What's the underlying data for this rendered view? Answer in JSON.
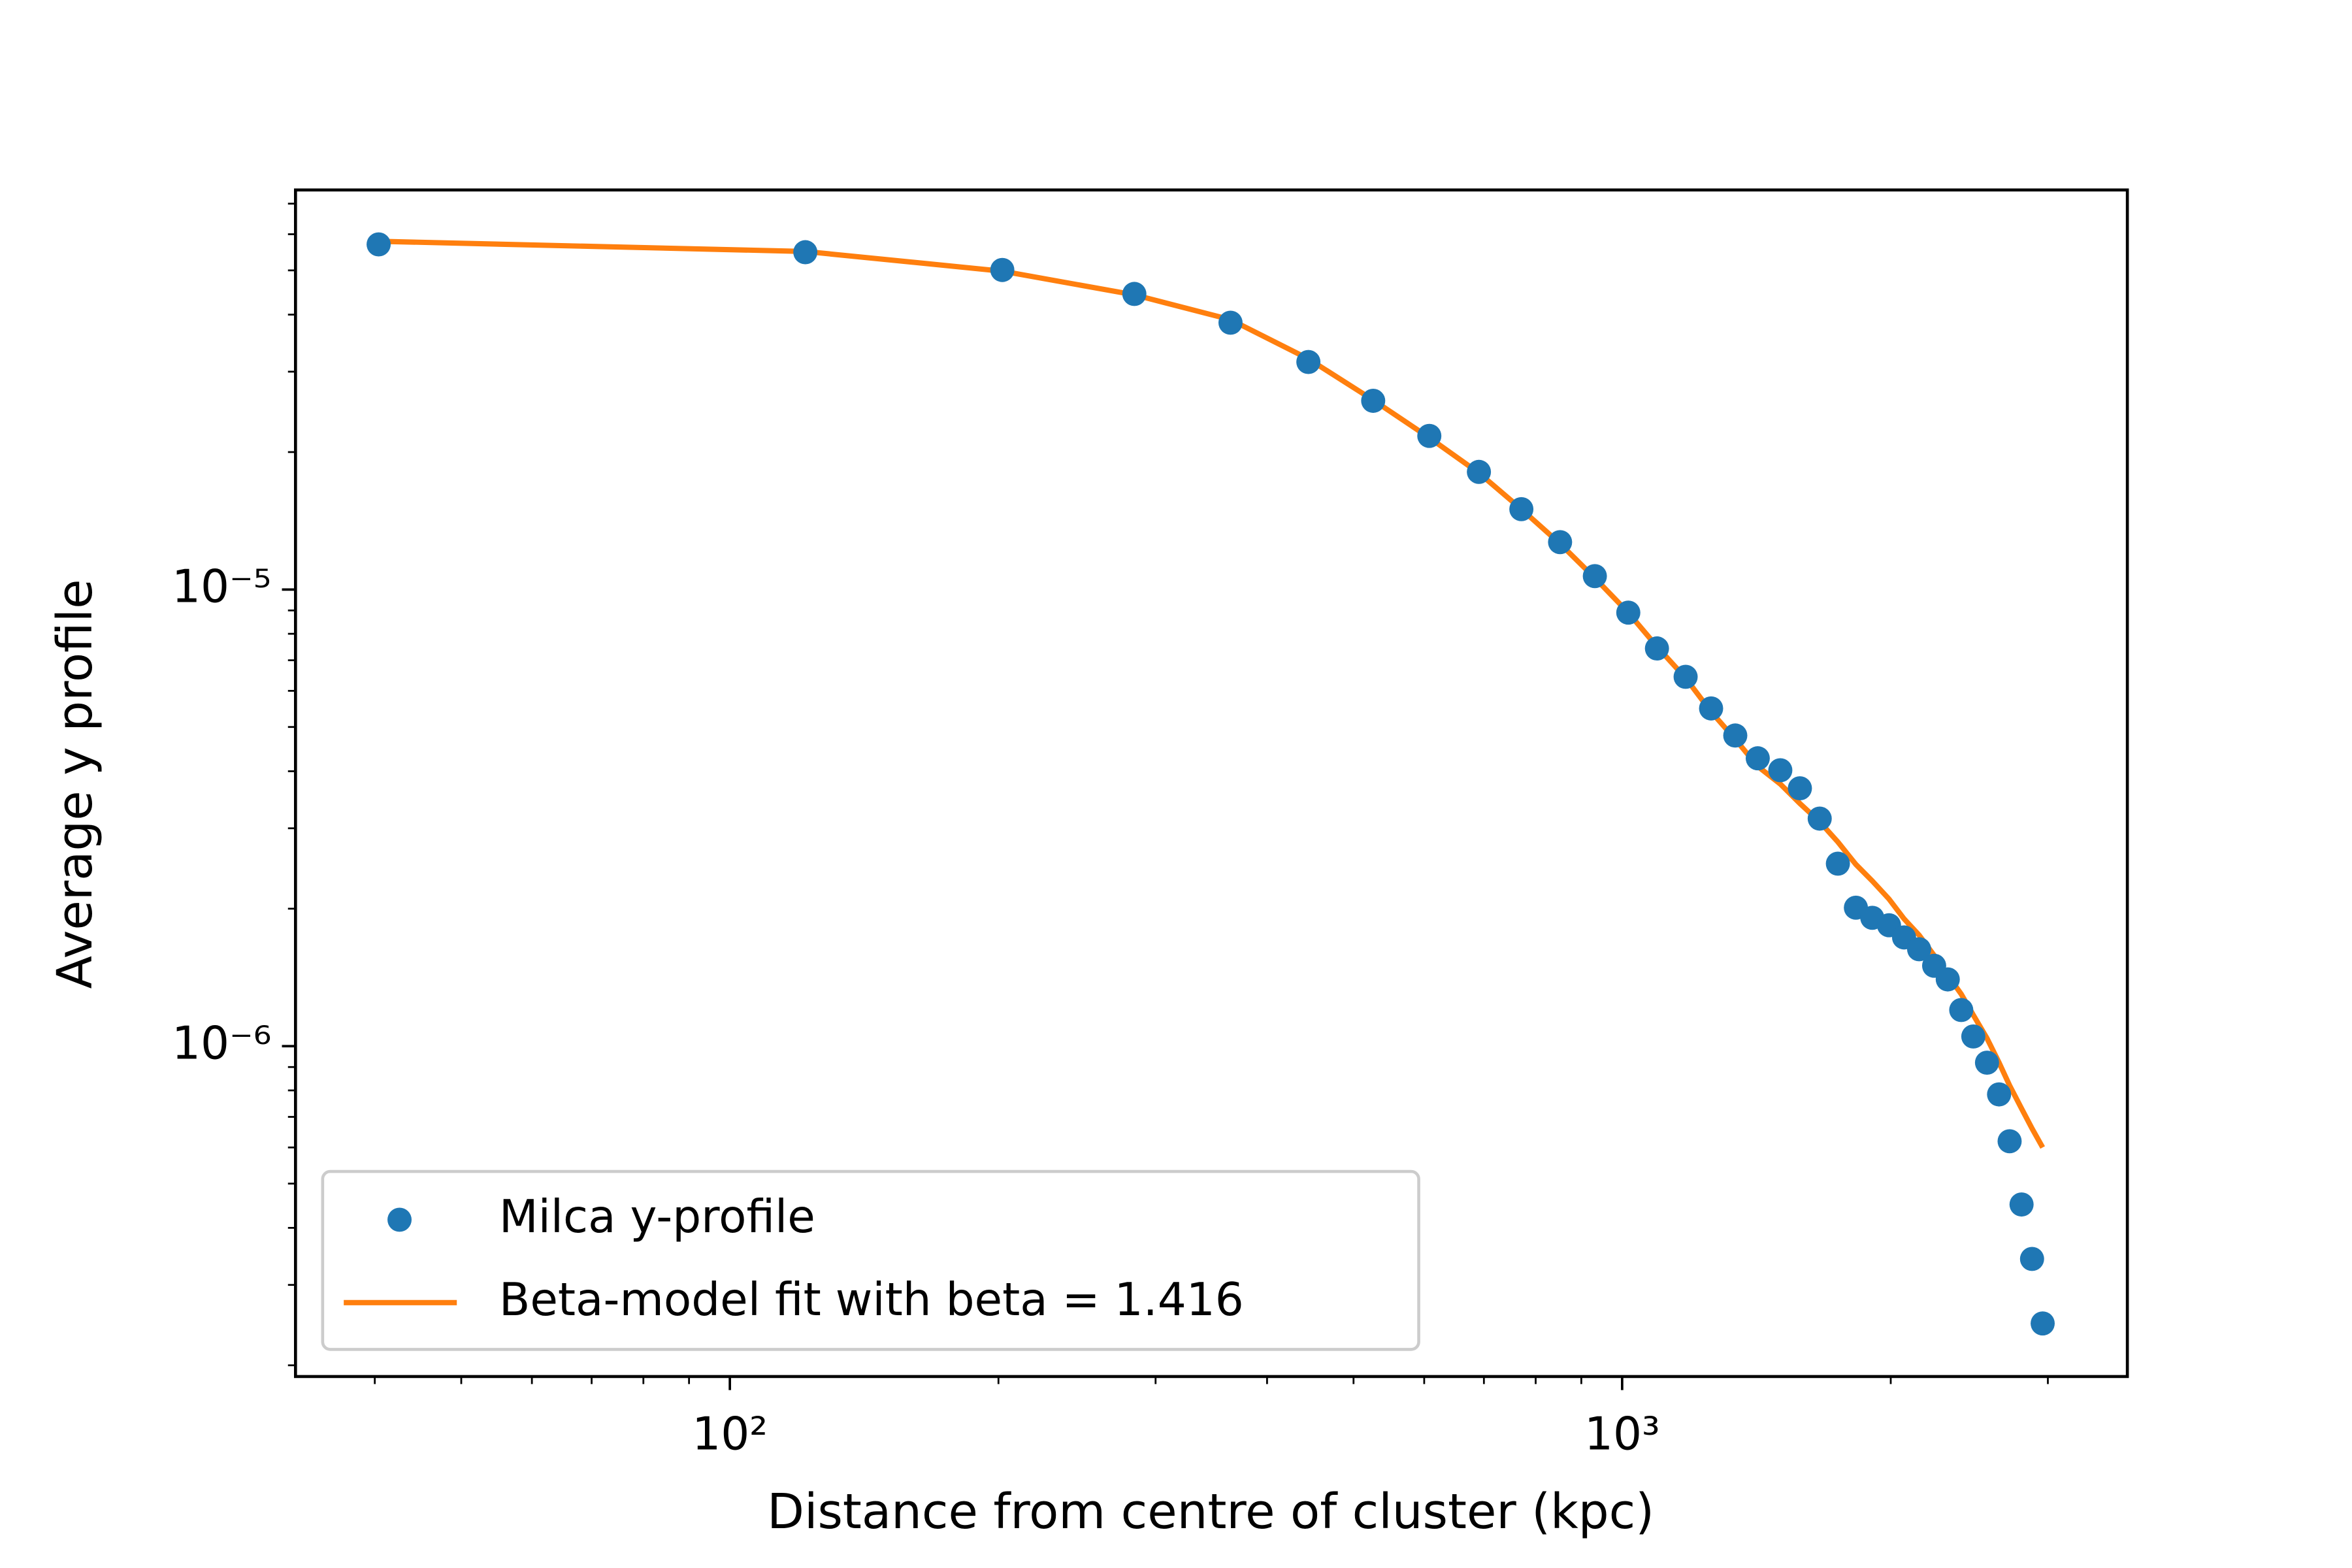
{
  "chart_data": {
    "type": "scatter",
    "x_label": "Distance from centre of cluster (kpc)",
    "y_label": "Average y profile",
    "log_x": true,
    "log_y": true,
    "xlim": [
      32.6,
      3683
    ],
    "ylim": [
      1.89e-07,
      7.5e-05
    ],
    "xticks": [
      {
        "value": 100,
        "label": "10²"
      },
      {
        "value": 1000,
        "label": "10³"
      }
    ],
    "yticks": [
      {
        "value": 1e-06,
        "label": "10⁻⁶"
      },
      {
        "value": 1e-05,
        "label": "10⁻⁵"
      }
    ],
    "xminorticks": [
      40,
      50,
      60,
      70,
      80,
      90,
      200,
      300,
      400,
      500,
      600,
      700,
      800,
      900,
      2000,
      3000
    ],
    "yminorticks": [
      2e-07,
      3e-07,
      4e-07,
      5e-07,
      6e-07,
      7e-07,
      8e-07,
      9e-07,
      2e-06,
      3e-06,
      4e-06,
      5e-06,
      6e-06,
      7e-06,
      8e-06,
      9e-06,
      2e-05,
      3e-05,
      4e-05,
      5e-05,
      6e-05,
      7e-05
    ],
    "legend_position": "lower left",
    "x": [
      40.4,
      121.5,
      202,
      284,
      364,
      445,
      526,
      608,
      691,
      771,
      852,
      932,
      1016,
      1094,
      1178,
      1258,
      1339,
      1419,
      1504,
      1582,
      1665,
      1745,
      1828,
      1907,
      1991,
      2070,
      2152,
      2237,
      2317,
      2399,
      2475,
      2564,
      2645,
      2718,
      2803,
      2880,
      2960
    ],
    "series": [
      {
        "name": "Milca y-profile",
        "color": "#1f77b4",
        "style": "markers",
        "values": [
          5.7e-05,
          5.48e-05,
          5.01e-05,
          4.44e-05,
          3.84e-05,
          3.15e-05,
          2.59e-05,
          2.17e-05,
          1.81e-05,
          1.5e-05,
          1.27e-05,
          1.07e-05,
          8.9e-06,
          7.43e-06,
          6.44e-06,
          5.49e-06,
          4.79e-06,
          4.27e-06,
          4.02e-06,
          3.67e-06,
          3.15e-06,
          2.51e-06,
          2.01e-06,
          1.91e-06,
          1.84e-06,
          1.73e-06,
          1.63e-06,
          1.5e-06,
          1.4e-06,
          1.2e-06,
          1.05e-06,
          9.2e-07,
          7.84e-07,
          6.19e-07,
          4.5e-07,
          3.42e-07,
          2.47e-07
        ]
      },
      {
        "name": "Beta-model fit with beta = 1.416",
        "color": "#ff7f0e",
        "style": "line",
        "values": [
          5.79e-05,
          5.5e-05,
          4.98e-05,
          4.42e-05,
          3.9e-05,
          3.2e-05,
          2.6e-05,
          2.15e-05,
          1.8e-05,
          1.5e-05,
          1.26e-05,
          1.06e-05,
          8.9e-06,
          7.5e-06,
          6.4e-06,
          5.4e-06,
          4.7e-06,
          4.1e-06,
          3.75e-06,
          3.4e-06,
          3.1e-06,
          2.8e-06,
          2.5e-06,
          2.3e-06,
          2.1e-06,
          1.9e-06,
          1.75e-06,
          1.58e-06,
          1.43e-06,
          1.3e-06,
          1.17e-06,
          1.04e-06,
          9.2e-07,
          8.2e-07,
          7.3e-07,
          6.6e-07,
          6e-07
        ]
      }
    ]
  }
}
